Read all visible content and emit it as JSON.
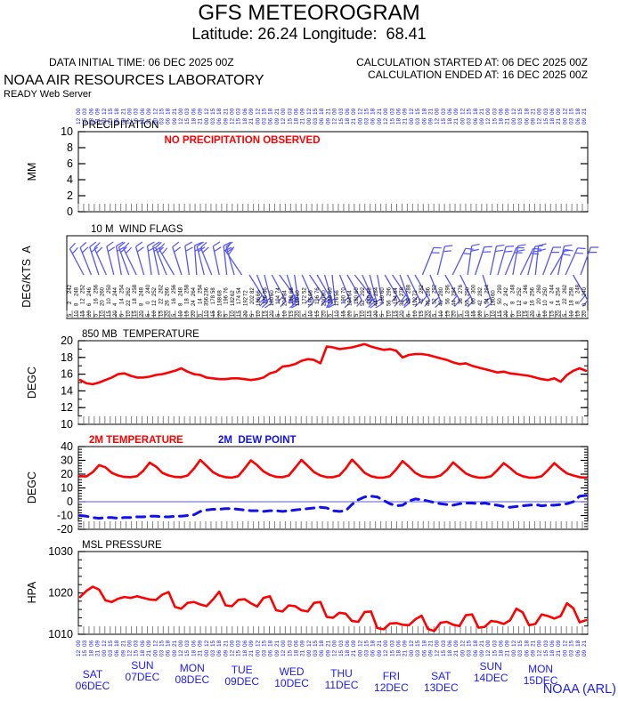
{
  "header": {
    "title": "GFS METEOROGRAM",
    "subtitle": "Latitude: 26.24 Longitude:  68.41",
    "data_initial_time": "DATA INITIAL TIME: 06 DEC 2025 00Z",
    "calc_started": "CALCULATION STARTED AT: 06 DEC 2025 00Z",
    "calc_ended": "CALCULATION ENDED AT: 16 DEC 2025 00Z",
    "org": "NOAA AIR RESOURCES LABORATORY",
    "server": "READY Web Server"
  },
  "credit": "NOAA (ARL)",
  "colors": {
    "line_red": "#ff0000",
    "label_blue": "#1a1aff",
    "barb_blue": "#5555ff",
    "dew_blue": "#1111ee",
    "zero_line": "#7777ff",
    "comb_gray": "#808080",
    "axis_black": "#000000"
  },
  "x_axis": {
    "days": 10,
    "hours_per_step": 3,
    "hour_pattern": [
      "00",
      "03",
      "06",
      "09",
      "12",
      "15",
      "18",
      "21"
    ],
    "dates": [
      {
        "day": "SAT",
        "date": "06DEC",
        "dy": 10
      },
      {
        "day": "SUN",
        "date": "07DEC",
        "dy": 0
      },
      {
        "day": "MON",
        "date": "08DEC",
        "dy": 3
      },
      {
        "day": "TUE",
        "date": "09DEC",
        "dy": 5
      },
      {
        "day": "WED",
        "date": "10DEC",
        "dy": 7
      },
      {
        "day": "THU",
        "date": "11DEC",
        "dy": 9
      },
      {
        "day": "FRI",
        "date": "12DEC",
        "dy": 12
      },
      {
        "day": "SAT",
        "date": "13DEC",
        "dy": 12
      },
      {
        "day": "SUN",
        "date": "14DEC",
        "dy": 1
      },
      {
        "day": "MON",
        "date": "15DEC",
        "dy": 4
      }
    ]
  },
  "chart_data": [
    {
      "id": "precip",
      "type": "line",
      "title": "PRECIPITATION",
      "ylabel": "MM",
      "ylim": [
        0,
        10
      ],
      "yticks": [
        0,
        2,
        4,
        6,
        8,
        10
      ],
      "minor_step": null,
      "values": [],
      "annotation": "NO PRECIPITATION OBSERVED"
    },
    {
      "id": "wind",
      "type": "wind-barbs",
      "title": "10 M  WIND FLAGS",
      "ylabel": "DEG/KTS  A",
      "barb_angles": [
        -28,
        -22,
        -18,
        -24,
        -14,
        -10,
        -20,
        -26,
        -16,
        -8,
        -12,
        -22,
        -30,
        -18,
        -8,
        -4,
        -14,
        -22,
        -12,
        -6,
        -16,
        -34,
        148,
        158,
        166,
        152,
        144,
        162,
        172,
        156,
        146,
        150,
        164,
        174,
        158,
        150,
        142,
        156,
        166,
        170,
        150,
        146,
        160,
        154,
        150,
        22,
        158,
        14,
        150,
        26,
        154,
        8,
        18,
        162,
        12,
        16,
        22,
        10,
        26,
        14,
        6,
        20,
        30,
        12,
        24,
        150,
        20
      ]
    },
    {
      "id": "t850",
      "type": "line",
      "title": "850 MB  TEMPERATURE",
      "ylabel": "DEGC",
      "ylim": [
        10,
        20
      ],
      "yticks": [
        10,
        12,
        14,
        16,
        18,
        20
      ],
      "minor_step": 1,
      "values": [
        15.3,
        14.9,
        14.8,
        15.0,
        15.3,
        15.6,
        16.0,
        16.1,
        15.8,
        15.6,
        15.6,
        15.7,
        15.9,
        16.0,
        16.2,
        16.4,
        16.7,
        16.3,
        16.0,
        15.9,
        15.6,
        15.5,
        15.4,
        15.4,
        15.5,
        15.5,
        15.4,
        15.3,
        15.4,
        15.6,
        16.1,
        16.3,
        16.9,
        17.0,
        17.2,
        17.6,
        17.8,
        17.7,
        17.3,
        19.3,
        19.2,
        19.0,
        19.1,
        19.2,
        19.4,
        19.6,
        19.3,
        19.1,
        18.9,
        19.0,
        18.8,
        18.0,
        18.3,
        18.4,
        18.4,
        18.3,
        18.1,
        17.9,
        17.7,
        17.4,
        17.2,
        17.3,
        17.0,
        16.8,
        16.6,
        16.4,
        16.2,
        16.3,
        16.1,
        16.0,
        15.9,
        15.8,
        15.6,
        15.4,
        15.3,
        15.5,
        15.1,
        15.9,
        16.4,
        16.7,
        16.4
      ]
    },
    {
      "id": "t2m",
      "type": "line",
      "title": "",
      "ylabel": "DEGC",
      "ylim": [
        -20,
        40
      ],
      "yticks": [
        -20,
        -10,
        0,
        10,
        20,
        30,
        40
      ],
      "minor_step": 2,
      "zero_line": true,
      "legend": [
        {
          "label": "2M TEMPERATURE",
          "color": "#ff0000"
        },
        {
          "label": "2M  DEW POINT",
          "color": "#1111ee"
        }
      ],
      "series": [
        {
          "name": "2M TEMPERATURE",
          "style": "solid",
          "color": "#ff0000",
          "values": [
            18.5,
            18.3,
            21.5,
            26.5,
            25.0,
            21.0,
            19.0,
            18.0,
            17.8,
            18.5,
            22.5,
            28.3,
            25.5,
            21.0,
            19.0,
            18.0,
            17.8,
            19.0,
            24.0,
            30.3,
            26.0,
            21.5,
            19.0,
            17.8,
            17.5,
            18.5,
            24.0,
            30.0,
            26.5,
            22.0,
            19.5,
            18.0,
            17.8,
            19.0,
            24.5,
            30.3,
            26.0,
            21.5,
            19.0,
            17.8,
            17.8,
            19.0,
            24.0,
            30.5,
            26.0,
            21.0,
            18.5,
            17.5,
            17.5,
            18.5,
            23.5,
            29.5,
            25.5,
            21.0,
            18.5,
            17.8,
            17.8,
            19.0,
            23.0,
            28.5,
            24.5,
            20.5,
            18.5,
            17.5,
            17.5,
            18.5,
            23.0,
            28.0,
            24.5,
            20.5,
            18.5,
            17.5,
            17.5,
            18.5,
            23.0,
            28.0,
            24.0,
            20.5,
            19.0,
            17.8,
            17.5
          ]
        },
        {
          "name": "2M DEW POINT",
          "style": "dashed",
          "color": "#1111ee",
          "values": [
            -10.0,
            -10.5,
            -11.5,
            -12.0,
            -11.5,
            -11.5,
            -12.0,
            -11.5,
            -11.5,
            -11.0,
            -11.0,
            -10.5,
            -10.5,
            -11.0,
            -11.0,
            -10.5,
            -10.5,
            -10.0,
            -9.5,
            -7.0,
            -6.0,
            -5.5,
            -5.5,
            -5.0,
            -5.0,
            -5.5,
            -6.0,
            -6.5,
            -6.5,
            -7.0,
            -6.5,
            -6.5,
            -7.0,
            -6.5,
            -6.0,
            -5.5,
            -5.0,
            -4.5,
            -4.0,
            -4.5,
            -6.5,
            -7.0,
            -6.5,
            -2.0,
            1.5,
            3.5,
            4.0,
            3.5,
            1.0,
            -1.5,
            -3.0,
            -2.5,
            0.5,
            2.0,
            1.5,
            0.5,
            -0.5,
            -1.5,
            -2.0,
            -2.5,
            -1.5,
            -1.0,
            -1.0,
            -1.5,
            -1.0,
            -2.0,
            -2.5,
            -3.5,
            -4.0,
            -3.5,
            -3.0,
            -2.5,
            -2.0,
            -3.0,
            -2.5,
            -2.5,
            -2.0,
            -1.5,
            0.0,
            4.0,
            4.5
          ]
        }
      ]
    },
    {
      "id": "mslp",
      "type": "line",
      "title": "MSL PRESSURE",
      "ylabel": "HPA",
      "ylim": [
        1010,
        1030
      ],
      "yticks": [
        1010,
        1020,
        1030
      ],
      "minor_step": 2,
      "values": [
        1019.0,
        1020.5,
        1021.5,
        1020.8,
        1018.2,
        1017.8,
        1018.6,
        1019.0,
        1018.8,
        1019.2,
        1018.8,
        1018.4,
        1018.3,
        1019.6,
        1020.2,
        1016.6,
        1016.2,
        1017.6,
        1017.8,
        1017.2,
        1016.8,
        1018.4,
        1020.3,
        1017.0,
        1016.8,
        1018.3,
        1018.5,
        1017.5,
        1016.7,
        1018.8,
        1019.2,
        1015.8,
        1015.5,
        1017.0,
        1016.8,
        1015.8,
        1015.5,
        1017.6,
        1017.8,
        1014.2,
        1014.0,
        1015.2,
        1015.0,
        1013.2,
        1013.0,
        1015.4,
        1015.5,
        1011.5,
        1011.2,
        1012.6,
        1012.7,
        1012.3,
        1012.2,
        1013.6,
        1014.5,
        1011.3,
        1010.8,
        1012.8,
        1013.0,
        1012.3,
        1012.0,
        1014.6,
        1014.8,
        1011.6,
        1011.8,
        1013.2,
        1013.0,
        1012.5,
        1013.4,
        1016.2,
        1015.3,
        1012.2,
        1012.5,
        1014.8,
        1014.4,
        1013.8,
        1014.4,
        1017.5,
        1016.3,
        1012.9,
        1013.4
      ]
    }
  ]
}
